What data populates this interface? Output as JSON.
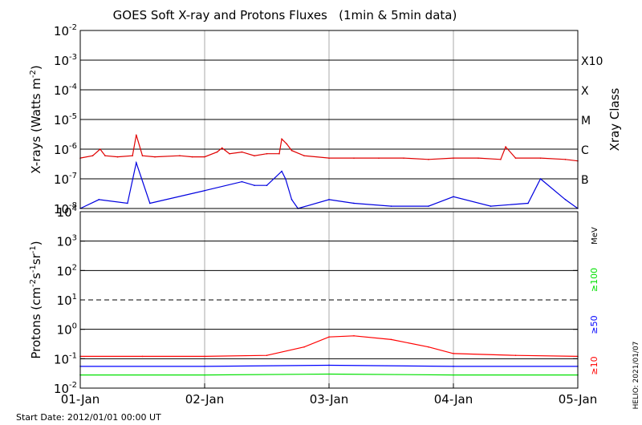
{
  "chart_data": [
    {
      "type": "line",
      "title": "GOES Soft X-ray and Protons Fluxes   (1min & 5min data)",
      "ylabel_base": "X-rays (Watts m",
      "ylabel_exp": "-2",
      "ylabel_end": ")",
      "yscale": "log",
      "ylim_exp": [
        -8,
        -2
      ],
      "yticks": [
        {
          "base": "10",
          "exp": "-8"
        },
        {
          "base": "10",
          "exp": "-7"
        },
        {
          "base": "10",
          "exp": "-6"
        },
        {
          "base": "10",
          "exp": "-5"
        },
        {
          "base": "10",
          "exp": "-4"
        },
        {
          "base": "10",
          "exp": "-3"
        },
        {
          "base": "10",
          "exp": "-2"
        }
      ],
      "class_axis_label": "Xray Class",
      "class_labels": [
        {
          "label": "B",
          "exp": -7
        },
        {
          "label": "C",
          "exp": -6
        },
        {
          "label": "M",
          "exp": -5
        },
        {
          "label": "X",
          "exp": -4
        },
        {
          "label": "X10",
          "exp": -3
        }
      ],
      "grid": true,
      "series": [
        {
          "color": "#e00000",
          "x": [
            0.0,
            0.1,
            0.16,
            0.2,
            0.3,
            0.42,
            0.45,
            0.5,
            0.6,
            0.8,
            0.9,
            1.0,
            1.1,
            1.14,
            1.2,
            1.3,
            1.4,
            1.5,
            1.6,
            1.62,
            1.66,
            1.7,
            1.8,
            2.0,
            2.2,
            2.4,
            2.6,
            2.8,
            3.0,
            3.2,
            3.38,
            3.42,
            3.5,
            3.7,
            3.9,
            4.0
          ],
          "y": [
            5e-07,
            6e-07,
            1e-06,
            6e-07,
            5.5e-07,
            6e-07,
            3e-06,
            6e-07,
            5.5e-07,
            6e-07,
            5.5e-07,
            5.5e-07,
            8e-07,
            1.1e-06,
            7e-07,
            8e-07,
            6e-07,
            7e-07,
            7e-07,
            2.2e-06,
            1.5e-06,
            9e-07,
            6e-07,
            5e-07,
            5e-07,
            5e-07,
            5e-07,
            4.5e-07,
            5e-07,
            5e-07,
            4.5e-07,
            1.2e-06,
            5e-07,
            5e-07,
            4.5e-07,
            4e-07
          ]
        },
        {
          "color": "#0000e0",
          "x": [
            0.0,
            0.15,
            0.38,
            0.45,
            0.56,
            1.0,
            1.3,
            1.4,
            1.5,
            1.62,
            1.65,
            1.7,
            1.75,
            2.0,
            2.2,
            2.5,
            2.8,
            3.0,
            3.3,
            3.6,
            3.7,
            3.9,
            4.0
          ],
          "y": [
            1e-08,
            2e-08,
            1.5e-08,
            3.5e-07,
            1.5e-08,
            4e-08,
            8e-08,
            6e-08,
            6e-08,
            1.8e-07,
            1e-07,
            2e-08,
            1e-08,
            2e-08,
            1.5e-08,
            1.2e-08,
            1.2e-08,
            2.5e-08,
            1.2e-08,
            1.5e-08,
            1e-07,
            2e-08,
            1e-08
          ]
        }
      ]
    },
    {
      "type": "line",
      "ylabel_base": "Protons (cm",
      "ylabel_exp1": "-2",
      "ylabel_mid": "s",
      "ylabel_exp2": "-1",
      "ylabel_mid2": "sr",
      "ylabel_exp3": "-1",
      "ylabel_end": ")",
      "yscale": "log",
      "ylim_exp": [
        -2,
        4
      ],
      "yticks": [
        {
          "base": "10",
          "exp": "-2"
        },
        {
          "base": "10",
          "exp": "-1"
        },
        {
          "base": "10",
          "exp": "0"
        },
        {
          "base": "10",
          "exp": "1"
        },
        {
          "base": "10",
          "exp": "2"
        },
        {
          "base": "10",
          "exp": "3"
        },
        {
          "base": "10",
          "exp": "4"
        }
      ],
      "dashed_level_exp": 1,
      "unit_label": "MeV",
      "x_tick_labels": [
        "01-Jan",
        "02-Jan",
        "03-Jan",
        "04-Jan",
        "05-Jan"
      ],
      "xlim": [
        0,
        4
      ],
      "series": [
        {
          "name": "≥10",
          "color": "#ff0000",
          "x": [
            0.0,
            0.5,
            1.0,
            1.5,
            1.8,
            2.0,
            2.2,
            2.5,
            2.8,
            3.0,
            3.5,
            4.0
          ],
          "y": [
            0.12,
            0.12,
            0.12,
            0.13,
            0.25,
            0.55,
            0.6,
            0.45,
            0.25,
            0.15,
            0.13,
            0.12
          ]
        },
        {
          "name": "≥50",
          "color": "#0000ff",
          "x": [
            0.0,
            1.0,
            2.0,
            3.0,
            4.0
          ],
          "y": [
            0.055,
            0.055,
            0.06,
            0.055,
            0.055
          ]
        },
        {
          "name": "≥100",
          "color": "#00e000",
          "x": [
            0.0,
            1.0,
            2.0,
            3.0,
            4.0
          ],
          "y": [
            0.028,
            0.028,
            0.03,
            0.028,
            0.028
          ]
        }
      ]
    }
  ],
  "footer": {
    "start_date": "Start Date: 2012/01/01 00:00 UT",
    "credit": "HELIO: 2021/01/07"
  }
}
